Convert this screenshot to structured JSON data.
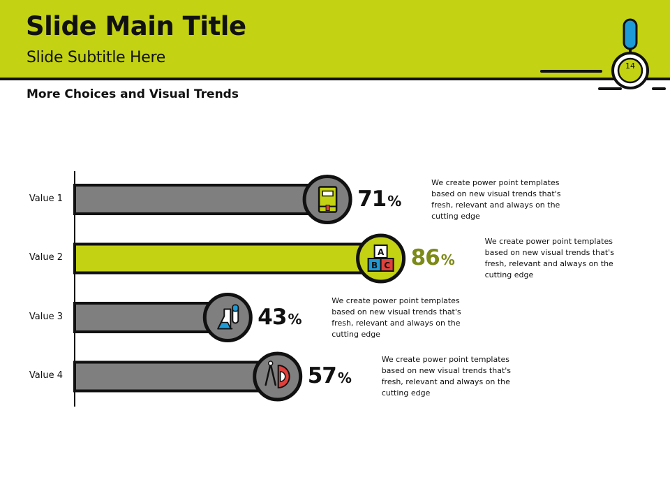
{
  "header": {
    "title": "Slide Main Title",
    "subtitle": "Slide Subtitle Here",
    "page_number": "14"
  },
  "section_title": "More Choices and Visual Trends",
  "colors": {
    "accent": "#c3d213",
    "bar_default": "#7f7f7f",
    "highlight_text": "#7c8a17",
    "outline": "#111111",
    "badge_blue": "#1e9ad6"
  },
  "chart_data": {
    "type": "bar",
    "orientation": "horizontal",
    "title": "",
    "xlabel": "",
    "ylabel": "",
    "xlim": [
      0,
      100
    ],
    "categories": [
      "Value 1",
      "Value 2",
      "Value 3",
      "Value 4"
    ],
    "values": [
      71,
      86,
      43,
      57
    ],
    "value_labels": [
      "71",
      "86",
      "43",
      "57"
    ],
    "unit": "%",
    "highlight_index": 1,
    "icons": [
      "book-icon",
      "abc-blocks-icon",
      "flask-icon",
      "compass-ruler-icon"
    ],
    "descriptions": [
      [
        "We create power point templates",
        "based on new visual trends that's",
        "fresh, relevant and always  on the",
        "cutting edge"
      ],
      [
        "We create power point templates",
        "based on new visual trends that's",
        "fresh, relevant and always  on the",
        "cutting edge"
      ],
      [
        "We create power point templates",
        "based on new visual trends that's",
        "fresh, relevant and always  on the",
        "cutting edge"
      ],
      [
        "We create power point templates",
        "based on new visual trends that's",
        "fresh, relevant and always  on the",
        "cutting edge"
      ]
    ],
    "block_letters": [
      "A",
      "B",
      "C"
    ]
  }
}
